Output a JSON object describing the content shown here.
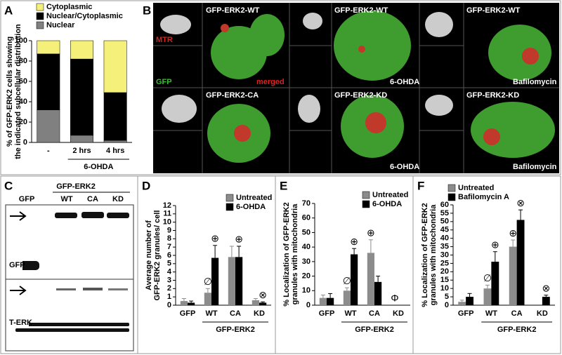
{
  "panel_labels": [
    "A",
    "B",
    "C",
    "D",
    "E",
    "F"
  ],
  "panel_b": {
    "labels": [
      "GFP-ERK2-WT",
      "MTR",
      "GFP",
      "merged",
      "GFP-ERK2-WT",
      "6-OHDA",
      "GFP-ERK2-WT",
      "Bafilomycin",
      "GFP-ERK2-CA",
      "GFP-ERK2-KD",
      "6-OHDA",
      "GFP-ERK2-KD",
      "Bafilomycin"
    ]
  },
  "panel_c": {
    "header": "GFP-ERK2",
    "lanes": [
      "GFP",
      "WT",
      "CA",
      "KD"
    ],
    "row_labels": [
      "GFP",
      "T-ERK"
    ]
  },
  "chart_data": [
    {
      "type": "stacked_bar",
      "ylabel": [
        "% of GFP-ERK2 cells showing",
        "the indicated subcellular distribution"
      ],
      "categories": [
        "-",
        "2 hrs",
        "4 hrs"
      ],
      "group_label": "6-OHDA",
      "legend": "top-left",
      "series": [
        {
          "name": "Nuclear",
          "color": "#808080",
          "values": [
            32,
            7,
            2
          ]
        },
        {
          "name": "Nuclear/Cytoplasmic",
          "color": "#000000",
          "values": [
            55,
            75,
            47
          ]
        },
        {
          "name": "Cytoplasmic",
          "color": "#f5f07a",
          "values": [
            13,
            18,
            51
          ]
        }
      ],
      "ylim": [
        0,
        100
      ],
      "yticks": [
        0,
        20,
        40,
        60,
        80,
        100
      ]
    },
    {
      "type": "bar",
      "ylabel": [
        "Average number of",
        "GFP-ERK2 granules/ cell"
      ],
      "categories": [
        "GFP",
        "WT",
        "CA",
        "KD"
      ],
      "group_label": "GFP-ERK2",
      "legend": "top-right",
      "series": [
        {
          "name": "Untreated",
          "color": "#8c8c8c",
          "values": [
            0.5,
            1.5,
            5.8,
            0.6
          ],
          "errors": [
            0.3,
            0.5,
            1.3,
            0.2
          ],
          "symbols": [
            null,
            "∅",
            null,
            null
          ]
        },
        {
          "name": "6-OHDA",
          "color": "#000000",
          "values": [
            0.3,
            5.7,
            5.8,
            0.3
          ],
          "errors": [
            0.2,
            1.5,
            1.3,
            0.1
          ],
          "symbols": [
            null,
            "⊕",
            "⊕",
            "⊗"
          ]
        }
      ],
      "ylim": [
        0,
        12
      ],
      "yticks": [
        0,
        1,
        2,
        3,
        4,
        5,
        6,
        7,
        8,
        9,
        10,
        11,
        12
      ]
    },
    {
      "type": "bar",
      "ylabel": [
        "% Localization of  GFP-ERK2",
        "granules with mitochondria"
      ],
      "categories": [
        "GFP",
        "WT",
        "CA",
        "KD"
      ],
      "group_label": "GFP-ERK2",
      "legend": "top-right",
      "series": [
        {
          "name": "Untreated",
          "color": "#8c8c8c",
          "values": [
            5,
            10,
            36,
            0
          ],
          "errors": [
            2,
            2,
            9,
            0
          ],
          "symbols": [
            null,
            "∅",
            "⊕",
            "Φ"
          ]
        },
        {
          "name": "6-OHDA",
          "color": "#000000",
          "values": [
            5,
            35,
            16,
            0
          ],
          "errors": [
            3,
            4,
            4,
            0
          ],
          "symbols": [
            null,
            "⊕",
            null,
            null
          ]
        }
      ],
      "ylim": [
        0,
        70
      ],
      "yticks": [
        0,
        10,
        20,
        30,
        40,
        50,
        60,
        70
      ]
    },
    {
      "type": "bar",
      "ylabel": [
        "% Localization of  GFP-ERK2",
        "granules with mitochondria"
      ],
      "categories": [
        "GFP",
        "WT",
        "CA",
        "KD"
      ],
      "group_label": "GFP-ERK2",
      "legend": "top-left",
      "series": [
        {
          "name": "Untreated",
          "color": "#8c8c8c",
          "values": [
            2,
            10,
            35,
            0
          ],
          "errors": [
            1,
            2,
            4,
            0
          ],
          "symbols": [
            null,
            "∅",
            "⊕",
            null
          ]
        },
        {
          "name": "Bafilomycin A",
          "color": "#000000",
          "values": [
            5,
            26,
            51,
            5
          ],
          "errors": [
            2,
            6,
            6,
            1
          ],
          "symbols": [
            null,
            "⊕",
            "⊗",
            "⊗"
          ]
        }
      ],
      "ylim": [
        0,
        60
      ],
      "yticks": [
        0,
        5,
        10,
        15,
        20,
        25,
        30,
        35,
        40,
        45,
        50,
        55,
        60
      ]
    }
  ]
}
